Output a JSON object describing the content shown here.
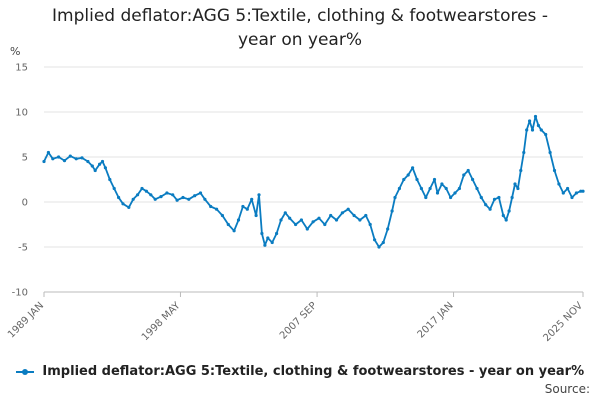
{
  "title_line1": "Implied deflator:AGG 5:Textile, clothing & footwearstores -",
  "title_line2": "year on year%",
  "source_label": "Source:",
  "chart_data": {
    "type": "line",
    "title": "Implied deflator:AGG 5:Textile, clothing & footwearstores - year on year%",
    "ylabel": "%",
    "ylim": [
      -10,
      15
    ],
    "yticks": [
      -10,
      -5,
      0,
      5,
      10,
      15
    ],
    "xlim": [
      1989.0,
      2025.85
    ],
    "xticks": [
      {
        "label": "1989 JAN",
        "x": 1989.0
      },
      {
        "label": "1998 MAY",
        "x": 1998.33
      },
      {
        "label": "2007 SEP",
        "x": 2007.67
      },
      {
        "label": "2017 JAN",
        "x": 2017.0
      },
      {
        "label": "2025 NOV",
        "x": 2025.85
      }
    ],
    "grid": true,
    "legend_position": "bottom",
    "color": "#0a7cc1",
    "series": [
      {
        "name": "Implied deflator:AGG 5:Textile, clothing & footwearstores - year on year%",
        "points": [
          [
            1989.0,
            4.5
          ],
          [
            1989.3,
            5.5
          ],
          [
            1989.6,
            4.8
          ],
          [
            1990.0,
            5.0
          ],
          [
            1990.4,
            4.6
          ],
          [
            1990.8,
            5.1
          ],
          [
            1991.2,
            4.8
          ],
          [
            1991.6,
            4.9
          ],
          [
            1992.0,
            4.5
          ],
          [
            1992.3,
            4.0
          ],
          [
            1992.5,
            3.5
          ],
          [
            1992.8,
            4.2
          ],
          [
            1993.0,
            4.5
          ],
          [
            1993.2,
            3.8
          ],
          [
            1993.5,
            2.5
          ],
          [
            1993.8,
            1.5
          ],
          [
            1994.1,
            0.5
          ],
          [
            1994.4,
            -0.2
          ],
          [
            1994.8,
            -0.6
          ],
          [
            1995.1,
            0.3
          ],
          [
            1995.4,
            0.8
          ],
          [
            1995.7,
            1.5
          ],
          [
            1996.0,
            1.2
          ],
          [
            1996.3,
            0.8
          ],
          [
            1996.6,
            0.3
          ],
          [
            1997.0,
            0.6
          ],
          [
            1997.4,
            1.0
          ],
          [
            1997.8,
            0.8
          ],
          [
            1998.1,
            0.2
          ],
          [
            1998.5,
            0.5
          ],
          [
            1998.9,
            0.3
          ],
          [
            1999.3,
            0.7
          ],
          [
            1999.7,
            1.0
          ],
          [
            2000.0,
            0.3
          ],
          [
            2000.4,
            -0.5
          ],
          [
            2000.8,
            -0.8
          ],
          [
            2001.2,
            -1.5
          ],
          [
            2001.6,
            -2.5
          ],
          [
            2002.0,
            -3.2
          ],
          [
            2002.3,
            -2.0
          ],
          [
            2002.6,
            -0.5
          ],
          [
            2002.9,
            -0.8
          ],
          [
            2003.2,
            0.3
          ],
          [
            2003.5,
            -1.5
          ],
          [
            2003.7,
            0.8
          ],
          [
            2003.9,
            -3.5
          ],
          [
            2004.1,
            -4.8
          ],
          [
            2004.3,
            -4.0
          ],
          [
            2004.6,
            -4.5
          ],
          [
            2004.9,
            -3.5
          ],
          [
            2005.2,
            -2.0
          ],
          [
            2005.5,
            -1.2
          ],
          [
            2005.8,
            -1.8
          ],
          [
            2006.2,
            -2.5
          ],
          [
            2006.6,
            -2.0
          ],
          [
            2007.0,
            -3.0
          ],
          [
            2007.4,
            -2.2
          ],
          [
            2007.8,
            -1.8
          ],
          [
            2008.2,
            -2.5
          ],
          [
            2008.6,
            -1.5
          ],
          [
            2009.0,
            -2.0
          ],
          [
            2009.4,
            -1.2
          ],
          [
            2009.8,
            -0.8
          ],
          [
            2010.2,
            -1.5
          ],
          [
            2010.6,
            -2.0
          ],
          [
            2011.0,
            -1.5
          ],
          [
            2011.3,
            -2.5
          ],
          [
            2011.6,
            -4.2
          ],
          [
            2011.9,
            -5.0
          ],
          [
            2012.2,
            -4.5
          ],
          [
            2012.5,
            -3.0
          ],
          [
            2012.8,
            -1.0
          ],
          [
            2013.0,
            0.5
          ],
          [
            2013.3,
            1.5
          ],
          [
            2013.6,
            2.5
          ],
          [
            2013.9,
            3.0
          ],
          [
            2014.2,
            3.8
          ],
          [
            2014.5,
            2.5
          ],
          [
            2014.8,
            1.5
          ],
          [
            2015.1,
            0.5
          ],
          [
            2015.4,
            1.5
          ],
          [
            2015.7,
            2.5
          ],
          [
            2015.9,
            1.0
          ],
          [
            2016.2,
            2.0
          ],
          [
            2016.5,
            1.5
          ],
          [
            2016.8,
            0.5
          ],
          [
            2017.1,
            1.0
          ],
          [
            2017.4,
            1.5
          ],
          [
            2017.7,
            3.0
          ],
          [
            2018.0,
            3.5
          ],
          [
            2018.3,
            2.5
          ],
          [
            2018.6,
            1.5
          ],
          [
            2018.9,
            0.5
          ],
          [
            2019.2,
            -0.3
          ],
          [
            2019.5,
            -0.8
          ],
          [
            2019.8,
            0.3
          ],
          [
            2020.1,
            0.5
          ],
          [
            2020.4,
            -1.5
          ],
          [
            2020.6,
            -2.0
          ],
          [
            2020.8,
            -1.0
          ],
          [
            2021.0,
            0.5
          ],
          [
            2021.2,
            2.0
          ],
          [
            2021.4,
            1.5
          ],
          [
            2021.6,
            3.5
          ],
          [
            2021.8,
            5.5
          ],
          [
            2022.0,
            8.0
          ],
          [
            2022.2,
            9.0
          ],
          [
            2022.4,
            8.0
          ],
          [
            2022.6,
            9.5
          ],
          [
            2022.8,
            8.5
          ],
          [
            2023.0,
            8.0
          ],
          [
            2023.3,
            7.5
          ],
          [
            2023.6,
            5.5
          ],
          [
            2023.9,
            3.5
          ],
          [
            2024.2,
            2.0
          ],
          [
            2024.5,
            1.0
          ],
          [
            2024.8,
            1.5
          ],
          [
            2025.1,
            0.5
          ],
          [
            2025.4,
            1.0
          ],
          [
            2025.7,
            1.2
          ],
          [
            2025.85,
            1.2
          ]
        ]
      }
    ]
  }
}
